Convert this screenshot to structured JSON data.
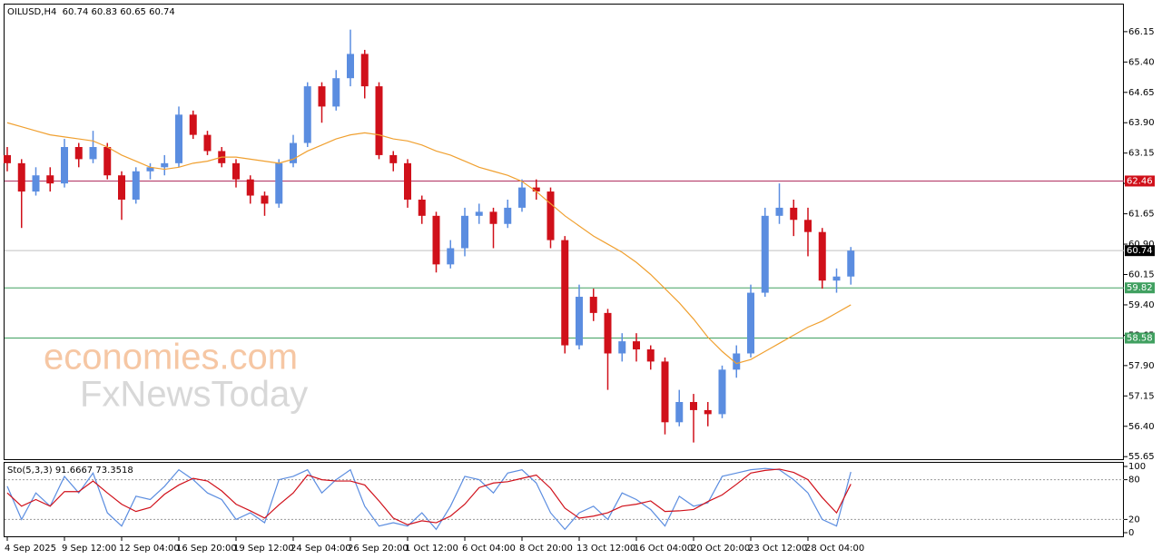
{
  "chart_data": [
    {
      "type": "candlestick",
      "title": "OILUSD,H4  60.74 60.83 60.65 60.74",
      "watermark": [
        "economies.com",
        "FxNewsToday"
      ],
      "categories": [
        "4 Sep 2025",
        null,
        null,
        null,
        "9 Sep 12:00",
        null,
        null,
        null,
        "12 Sep 04:00",
        null,
        null,
        null,
        "16 Sep 20:00",
        null,
        null,
        null,
        "19 Sep 12:00",
        null,
        null,
        null,
        "24 Sep 04:00",
        null,
        null,
        null,
        "26 Sep 20:00",
        null,
        null,
        null,
        "1 Oct 12:00",
        null,
        null,
        null,
        "6 Oct 04:00",
        null,
        null,
        null,
        "8 Oct 20:00",
        null,
        null,
        null,
        "13 Oct 12:00",
        null,
        null,
        null,
        "16 Oct 04:00",
        null,
        null,
        null,
        "20 Oct 20:00",
        null,
        null,
        null,
        "23 Oct 12:00",
        null,
        null,
        null,
        "28 Oct 04:00",
        null,
        null,
        null
      ],
      "open": [
        63.1,
        62.9,
        62.2,
        62.6,
        62.4,
        63.3,
        63.0,
        63.3,
        62.6,
        62.0,
        62.7,
        62.8,
        62.9,
        64.1,
        63.6,
        63.2,
        62.9,
        62.5,
        62.1,
        61.9,
        62.9,
        63.4,
        64.8,
        64.3,
        65.0,
        65.6,
        64.8,
        63.1,
        62.9,
        62.0,
        61.6,
        60.4,
        60.8,
        61.6,
        61.7,
        61.4,
        61.8,
        62.3,
        62.2,
        61.0,
        58.4,
        59.6,
        59.2,
        58.2,
        58.5,
        58.3,
        58.0,
        56.5,
        57.0,
        56.8,
        56.7,
        57.8,
        58.2,
        59.7,
        61.6,
        61.8,
        61.5,
        61.2,
        60.0,
        60.1
      ],
      "high": [
        63.3,
        63.0,
        62.8,
        62.8,
        63.5,
        63.4,
        63.7,
        63.4,
        62.7,
        62.8,
        62.9,
        63.1,
        64.3,
        64.2,
        63.7,
        63.3,
        63.0,
        62.6,
        62.2,
        63.0,
        63.6,
        64.9,
        64.9,
        65.2,
        66.2,
        65.7,
        64.9,
        63.2,
        63.0,
        62.1,
        61.7,
        61.0,
        61.8,
        61.9,
        61.8,
        62.0,
        62.5,
        62.5,
        62.3,
        61.1,
        59.9,
        59.8,
        59.3,
        58.7,
        58.7,
        58.4,
        58.1,
        57.3,
        57.2,
        57.0,
        57.9,
        58.4,
        59.9,
        61.8,
        62.4,
        62.0,
        61.8,
        61.3,
        60.3,
        60.83
      ],
      "low": [
        62.7,
        61.3,
        62.1,
        62.2,
        62.3,
        62.8,
        62.9,
        62.5,
        61.5,
        61.9,
        62.5,
        62.6,
        62.8,
        63.5,
        63.1,
        62.8,
        62.3,
        61.9,
        61.6,
        61.8,
        62.8,
        63.3,
        63.9,
        64.2,
        64.8,
        64.5,
        63.0,
        62.7,
        61.8,
        61.4,
        60.2,
        60.3,
        60.6,
        61.4,
        60.8,
        61.3,
        61.7,
        62.0,
        60.8,
        58.2,
        58.3,
        59.0,
        57.3,
        58.0,
        58.0,
        57.8,
        56.2,
        56.4,
        56.0,
        56.4,
        56.6,
        57.6,
        58.1,
        59.6,
        61.4,
        61.1,
        60.6,
        59.8,
        59.7,
        59.9
      ],
      "close": [
        62.9,
        62.2,
        62.6,
        62.4,
        63.3,
        63.0,
        63.3,
        62.6,
        62.0,
        62.7,
        62.8,
        62.9,
        64.1,
        63.6,
        63.2,
        62.9,
        62.5,
        62.1,
        61.9,
        62.9,
        63.4,
        64.8,
        64.3,
        65.0,
        65.6,
        64.8,
        63.1,
        62.9,
        62.0,
        61.6,
        60.4,
        60.8,
        61.6,
        61.7,
        61.4,
        61.8,
        62.3,
        62.2,
        61.0,
        58.4,
        59.6,
        59.2,
        58.2,
        58.5,
        58.3,
        58.0,
        56.5,
        57.0,
        56.8,
        56.7,
        57.8,
        58.2,
        59.7,
        61.6,
        61.8,
        61.5,
        61.2,
        60.0,
        60.1,
        60.74
      ],
      "up_color": "#5b8de0",
      "down_color": "#d0101a",
      "ma": {
        "color": "#f0a030",
        "values": [
          63.9,
          63.8,
          63.7,
          63.6,
          63.55,
          63.5,
          63.45,
          63.3,
          63.1,
          62.95,
          62.8,
          62.75,
          62.8,
          62.9,
          62.95,
          63.05,
          63.05,
          63.0,
          62.95,
          62.9,
          63.0,
          63.2,
          63.35,
          63.5,
          63.6,
          63.65,
          63.6,
          63.5,
          63.45,
          63.35,
          63.2,
          63.1,
          62.95,
          62.8,
          62.7,
          62.6,
          62.45,
          62.2,
          61.9,
          61.6,
          61.35,
          61.1,
          60.9,
          60.7,
          60.45,
          60.15,
          59.8,
          59.45,
          59.05,
          58.6,
          58.25,
          57.95,
          58.05,
          58.25,
          58.45,
          58.65,
          58.85,
          59.0,
          59.2,
          59.4
        ]
      },
      "lines": [
        {
          "value": 62.46,
          "color": "#b03060",
          "label_bg": "#d0101a"
        },
        {
          "value": 60.74,
          "color": "#c0c0c0",
          "label_bg": "#000000"
        },
        {
          "value": 59.82,
          "color": "#40a060",
          "label_bg": "#40a060"
        },
        {
          "value": 58.58,
          "color": "#40a060",
          "label_bg": "#40a060"
        }
      ],
      "ylim": [
        55.61,
        66.82
      ],
      "yticks": [
        55.65,
        {
          "value": 56.4,
          "label": "56.40"
        },
        57.15,
        {
          "value": 57.9,
          "label": "57.90"
        },
        58.65,
        {
          "value": 59.4,
          "label": "59.40"
        },
        60.15,
        {
          "value": 60.9,
          "label": "60.90"
        },
        61.65,
        {
          "value": 62.4,
          "label": "62.40"
        },
        63.15,
        {
          "value": 63.9,
          "label": "63.90"
        },
        64.65,
        {
          "value": 65.4,
          "label": "65.40"
        },
        66.15
      ]
    },
    {
      "type": "line",
      "title": "Sto(5,3,3) 91.6667 73.3518",
      "series": [
        {
          "color": "#5b8de0",
          "values": [
            70,
            20,
            60,
            40,
            85,
            60,
            90,
            30,
            10,
            55,
            50,
            70,
            95,
            80,
            60,
            50,
            20,
            30,
            15,
            80,
            85,
            95,
            60,
            80,
            95,
            40,
            10,
            15,
            10,
            30,
            5,
            40,
            85,
            80,
            60,
            90,
            95,
            75,
            30,
            5,
            30,
            40,
            20,
            60,
            50,
            35,
            10,
            55,
            40,
            45,
            85,
            90,
            95,
            97,
            95,
            80,
            60,
            20,
            10,
            91.6667
          ]
        },
        {
          "color": "#d0101a",
          "values": [
            60,
            40,
            50,
            40,
            62,
            62,
            78,
            60,
            43,
            32,
            38,
            58,
            72,
            82,
            78,
            63,
            43,
            33,
            22,
            42,
            60,
            87,
            80,
            78,
            78,
            72,
            48,
            22,
            12,
            18,
            15,
            25,
            43,
            68,
            75,
            77,
            82,
            87,
            67,
            37,
            22,
            25,
            30,
            40,
            43,
            48,
            32,
            33,
            35,
            47,
            57,
            73,
            90,
            94,
            96,
            91,
            80,
            53,
            30,
            73.3518
          ]
        }
      ],
      "levels": [
        20,
        80
      ],
      "ylim": [
        0,
        100
      ],
      "yticks": [
        0,
        20,
        80,
        100
      ]
    }
  ]
}
